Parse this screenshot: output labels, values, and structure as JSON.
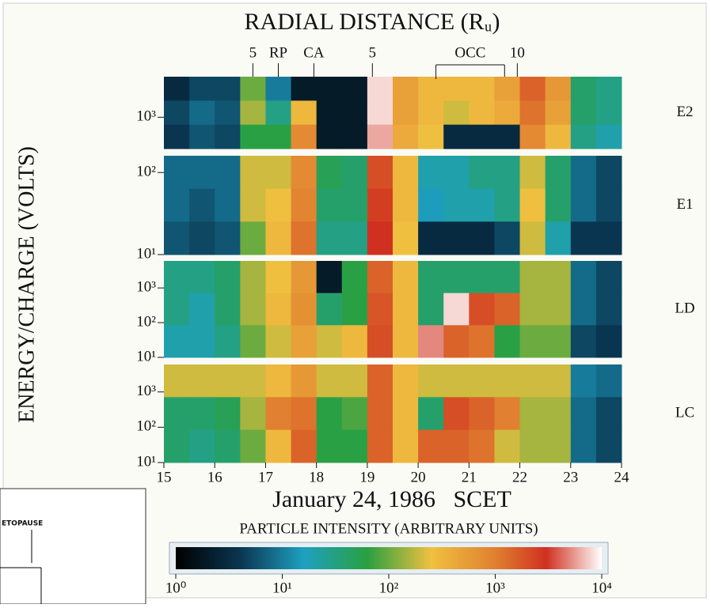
{
  "chart_data": {
    "type": "heatmap",
    "title": "RADIAL DISTANCE (Rᵤ)",
    "xlabel": "January 24, 1986   SCET",
    "ylabel": "ENERGY/CHARGE (VOLTS)",
    "xlim": [
      15,
      24
    ],
    "xticks": [
      15,
      16,
      17,
      18,
      19,
      20,
      21,
      22,
      23,
      24
    ],
    "x": [
      15,
      15.5,
      16,
      16.5,
      17,
      17.5,
      18,
      18.5,
      19,
      19.5,
      20,
      20.5,
      21,
      21.5,
      22,
      22.5,
      23,
      23.5
    ],
    "markers": [
      {
        "label": "5",
        "x": 16.75
      },
      {
        "label": "RP",
        "x": 17.25
      },
      {
        "label": "CA",
        "x": 17.95
      },
      {
        "label": "5",
        "x": 19.1
      },
      {
        "label": "10",
        "x": 21.95
      }
    ],
    "span": {
      "label": "OCC",
      "x": [
        20.35,
        21.7
      ]
    },
    "panels": [
      {
        "name": "E2",
        "log": true,
        "ylim": [
          250,
          6000
        ],
        "yticks": [
          {
            "value": 1000,
            "label": "10³"
          }
        ],
        "z": [
          [
            3,
            5,
            5,
            100,
            10,
            2,
            2,
            2,
            8000,
            500,
            300,
            300,
            300,
            500,
            1500,
            600,
            40,
            30
          ],
          [
            5,
            8,
            6,
            150,
            30,
            300,
            2,
            2,
            8000,
            500,
            300,
            200,
            300,
            400,
            1200,
            500,
            40,
            30
          ],
          [
            4,
            6,
            5,
            60,
            60,
            800,
            2,
            2,
            6000,
            400,
            250,
            3,
            3,
            3,
            800,
            300,
            30,
            20
          ]
        ]
      },
      {
        "name": "E1",
        "log": true,
        "ylim": [
          10,
          160
        ],
        "yticks": [
          {
            "value": 100,
            "label": "10²"
          },
          {
            "value": 10,
            "label": "10¹"
          }
        ],
        "z": [
          [
            8,
            8,
            8,
            200,
            200,
            800,
            50,
            40,
            2000,
            300,
            20,
            20,
            30,
            30,
            200,
            40,
            8,
            5
          ],
          [
            8,
            6,
            8,
            200,
            250,
            900,
            40,
            40,
            2500,
            300,
            15,
            20,
            20,
            30,
            250,
            40,
            8,
            5
          ],
          [
            6,
            5,
            6,
            100,
            300,
            1200,
            30,
            30,
            3000,
            250,
            3,
            3,
            3,
            5,
            200,
            20,
            4,
            4
          ]
        ]
      },
      {
        "name": "LD",
        "log": true,
        "ylim": [
          10,
          6000
        ],
        "yticks": [
          {
            "value": 1000,
            "label": "10³"
          },
          {
            "value": 100,
            "label": "10²"
          },
          {
            "value": 10,
            "label": "10¹"
          }
        ],
        "z": [
          [
            30,
            30,
            40,
            150,
            250,
            600,
            2,
            60,
            1500,
            300,
            40,
            40,
            40,
            40,
            150,
            150,
            8,
            5
          ],
          [
            30,
            20,
            40,
            150,
            300,
            700,
            40,
            60,
            1800,
            300,
            40,
            8000,
            2000,
            1500,
            150,
            150,
            8,
            5
          ],
          [
            20,
            20,
            30,
            100,
            200,
            500,
            200,
            300,
            2000,
            300,
            5000,
            1500,
            1200,
            60,
            100,
            100,
            5,
            4
          ]
        ]
      },
      {
        "name": "LC",
        "log": true,
        "ylim": [
          10,
          6000
        ],
        "yticks": [
          {
            "value": 1000,
            "label": "10³"
          },
          {
            "value": 100,
            "label": "10²"
          },
          {
            "value": 10,
            "label": "10¹"
          }
        ],
        "z": [
          [
            200,
            200,
            200,
            200,
            300,
            600,
            200,
            200,
            1500,
            300,
            200,
            200,
            200,
            200,
            200,
            200,
            10,
            8
          ],
          [
            40,
            40,
            50,
            150,
            1000,
            1200,
            60,
            80,
            1500,
            300,
            40,
            2000,
            1500,
            1000,
            150,
            150,
            8,
            5
          ],
          [
            40,
            30,
            40,
            100,
            300,
            1500,
            60,
            60,
            1500,
            300,
            1500,
            1500,
            1200,
            200,
            150,
            150,
            8,
            5
          ]
        ]
      }
    ],
    "colorbar": {
      "label": "PARTICLE INTENSITY (ARBITRARY UNITS)",
      "log": true,
      "lim": [
        1,
        10000
      ],
      "ticks": [
        {
          "value": 1,
          "label": "10⁰"
        },
        {
          "value": 10,
          "label": "10¹"
        },
        {
          "value": 100,
          "label": "10²"
        },
        {
          "value": 1000,
          "label": "10³"
        },
        {
          "value": 10000,
          "label": "10⁴"
        }
      ]
    },
    "inset": {
      "text": "ETOPAUSE"
    }
  }
}
